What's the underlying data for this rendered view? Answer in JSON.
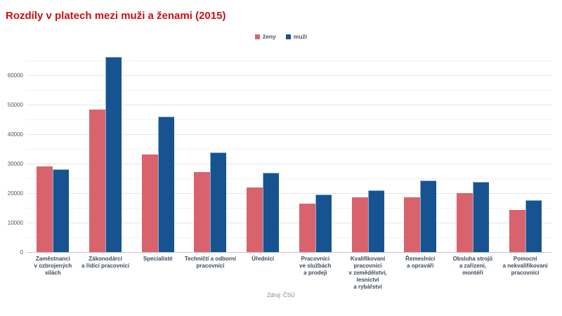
{
  "page": {
    "title": "Rozdíly v platech mezi muži a ženami (2015)",
    "source": "Zdroj: ČSÚ"
  },
  "legend": {
    "items": [
      {
        "label": "ženy",
        "color": "#d9636c"
      },
      {
        "label": "muži",
        "color": "#165390"
      }
    ]
  },
  "colors": {
    "title_red": "#cc1111",
    "bar_zeny": "#d9636c",
    "bar_muzi": "#165390",
    "axis_line": "#c8c8c8",
    "grid_major": "#e6e6e6",
    "grid_minor": "#f2f2f2"
  },
  "chart_data": {
    "type": "bar",
    "title": "Rozdíly v platech mezi muži a ženami (2015)",
    "xlabel": "",
    "ylabel": "",
    "ylim": [
      0,
      60000
    ],
    "yticks": [
      0,
      10000,
      20000,
      30000,
      40000,
      50000,
      60000
    ],
    "grid": true,
    "grid_minor_step": 5000,
    "legend_position": "top-center",
    "categories": [
      "Zaměstnanci\nv ozbrojených\nsilách",
      "Zákonodárci\na řídící pracovníci",
      "Specialisté",
      "Techničtí a odborní\npracovníci",
      "Úředníci",
      "Pracovníci\nve službách\na prodeji",
      "Kvalifikovaní\npracovníci\nv zemědělství,\nlesnictví\na rybářství",
      "Řemeslníci\na opraváři",
      "Obsluha strojů\na zařízení,\nmontéři",
      "Pomocní\na nekvalifikovaní\npracovníci"
    ],
    "series": [
      {
        "name": "ženy",
        "color": "#d9636c",
        "values": [
          29000,
          48300,
          33200,
          27100,
          21900,
          16400,
          18600,
          18600,
          19900,
          14300
        ]
      },
      {
        "name": "muži",
        "color": "#165390",
        "values": [
          28100,
          66200,
          46000,
          33900,
          27000,
          19500,
          21000,
          24400,
          23800,
          17600
        ]
      }
    ],
    "source": "Zdroj: ČSÚ"
  }
}
